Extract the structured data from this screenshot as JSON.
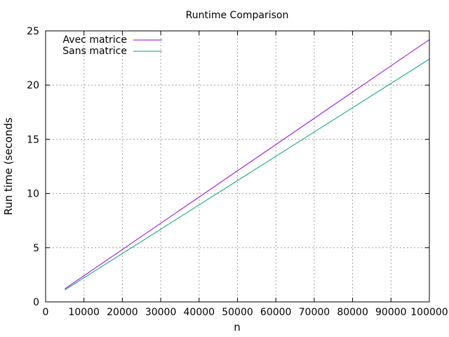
{
  "chart_data": {
    "type": "line",
    "title": "Runtime Comparison",
    "xlabel": "n",
    "ylabel": "Run time (seconds",
    "xlim": [
      0,
      100000
    ],
    "ylim": [
      0,
      25
    ],
    "xticks": [
      0,
      10000,
      20000,
      30000,
      40000,
      50000,
      60000,
      70000,
      80000,
      90000,
      100000
    ],
    "yticks": [
      0,
      5,
      10,
      15,
      20,
      25
    ],
    "grid": true,
    "legend_position": "top-left",
    "series": [
      {
        "name": "Avec matrice",
        "color": "#9400d3",
        "x": [
          5000,
          100000
        ],
        "y": [
          1.2,
          24.2
        ]
      },
      {
        "name": "Sans matrice",
        "color": "#009e73",
        "x": [
          5000,
          100000
        ],
        "y": [
          1.1,
          22.4
        ]
      }
    ]
  }
}
